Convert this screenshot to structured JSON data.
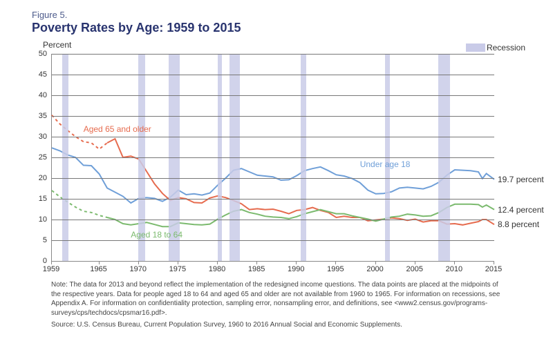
{
  "figure_label": "Figure 5.",
  "title": "Poverty Rates by Age: 1959 to 2015",
  "y_axis_label": "Percent",
  "legend_label": "Recession",
  "chart": {
    "type": "line",
    "xlim": [
      1959,
      2015
    ],
    "ylim": [
      0,
      50
    ],
    "ytick_step": 5,
    "x_ticks": [
      1959,
      1965,
      1970,
      1975,
      1980,
      1985,
      1990,
      1995,
      2000,
      2005,
      2010,
      2015
    ],
    "background_color": "#ffffff",
    "grid_color": "#777777",
    "recession_band_color": "#c9cbe8",
    "recession_bands": [
      [
        1960.3,
        1961.1
      ],
      [
        1969.9,
        1970.8
      ],
      [
        1973.8,
        1975.2
      ],
      [
        1980.0,
        1980.5
      ],
      [
        1981.5,
        1982.8
      ],
      [
        1990.5,
        1991.2
      ],
      [
        2001.2,
        2001.8
      ],
      [
        2007.9,
        2009.4
      ]
    ]
  },
  "series": {
    "under18": {
      "label": "Under age 18",
      "color": "#6f9fd8",
      "label_color": "#6f9fd8",
      "line_width": 2,
      "label_pos": {
        "year": 1998,
        "pct": 24.5
      },
      "end_label": "19.7 percent",
      "end_value": 19.7,
      "data": [
        [
          1959,
          27.3
        ],
        [
          1960,
          26.6
        ],
        [
          1961,
          25.6
        ],
        [
          1962,
          25.0
        ],
        [
          1963,
          23.1
        ],
        [
          1964,
          23.0
        ],
        [
          1965,
          21.0
        ],
        [
          1966,
          17.6
        ],
        [
          1967,
          16.6
        ],
        [
          1968,
          15.6
        ],
        [
          1969,
          14.0
        ],
        [
          1970,
          15.1
        ],
        [
          1971,
          15.3
        ],
        [
          1972,
          15.1
        ],
        [
          1973,
          14.4
        ],
        [
          1974,
          15.4
        ],
        [
          1975,
          17.1
        ],
        [
          1976,
          16.0
        ],
        [
          1977,
          16.2
        ],
        [
          1978,
          15.9
        ],
        [
          1979,
          16.4
        ],
        [
          1980,
          18.3
        ],
        [
          1981,
          20.0
        ],
        [
          1982,
          21.9
        ],
        [
          1983,
          22.3
        ],
        [
          1984,
          21.5
        ],
        [
          1985,
          20.7
        ],
        [
          1986,
          20.5
        ],
        [
          1987,
          20.3
        ],
        [
          1988,
          19.5
        ],
        [
          1989,
          19.6
        ],
        [
          1990,
          20.6
        ],
        [
          1991,
          21.8
        ],
        [
          1992,
          22.3
        ],
        [
          1993,
          22.7
        ],
        [
          1994,
          21.8
        ],
        [
          1995,
          20.8
        ],
        [
          1996,
          20.5
        ],
        [
          1997,
          19.9
        ],
        [
          1998,
          18.9
        ],
        [
          1999,
          17.1
        ],
        [
          2000,
          16.2
        ],
        [
          2001,
          16.3
        ],
        [
          2002,
          16.7
        ],
        [
          2003,
          17.6
        ],
        [
          2004,
          17.8
        ],
        [
          2005,
          17.6
        ],
        [
          2006,
          17.4
        ],
        [
          2007,
          18.0
        ],
        [
          2008,
          19.0
        ],
        [
          2009,
          20.7
        ],
        [
          2010,
          22.0
        ],
        [
          2011,
          21.9
        ],
        [
          2012,
          21.8
        ],
        [
          2013,
          21.5
        ],
        [
          2013.5,
          19.9
        ],
        [
          2014,
          21.1
        ],
        [
          2015,
          19.7
        ]
      ]
    },
    "aged65": {
      "label": "Aged 65 and older",
      "color": "#e66b4e",
      "label_color": "#e66b4e",
      "line_width": 2,
      "label_pos": {
        "year": 1963,
        "pct": 33
      },
      "end_label": "8.8 percent",
      "end_value": 8.8,
      "dashed_before": 1966,
      "data": [
        [
          1959,
          35.2
        ],
        [
          1960,
          33.1
        ],
        [
          1961,
          31.5
        ],
        [
          1962,
          30.0
        ],
        [
          1963,
          28.8
        ],
        [
          1964,
          28.5
        ],
        [
          1965,
          27.0
        ],
        [
          1966,
          28.5
        ],
        [
          1967,
          29.5
        ],
        [
          1968,
          25.0
        ],
        [
          1969,
          25.3
        ],
        [
          1970,
          24.6
        ],
        [
          1971,
          21.6
        ],
        [
          1972,
          18.6
        ],
        [
          1973,
          16.3
        ],
        [
          1974,
          14.6
        ],
        [
          1975,
          15.3
        ],
        [
          1976,
          15.0
        ],
        [
          1977,
          14.1
        ],
        [
          1978,
          14.0
        ],
        [
          1979,
          15.2
        ],
        [
          1980,
          15.7
        ],
        [
          1981,
          15.3
        ],
        [
          1982,
          14.6
        ],
        [
          1983,
          13.8
        ],
        [
          1984,
          12.4
        ],
        [
          1985,
          12.6
        ],
        [
          1986,
          12.4
        ],
        [
          1987,
          12.5
        ],
        [
          1988,
          12.0
        ],
        [
          1989,
          11.4
        ],
        [
          1990,
          12.2
        ],
        [
          1991,
          12.4
        ],
        [
          1992,
          12.9
        ],
        [
          1993,
          12.2
        ],
        [
          1994,
          11.7
        ],
        [
          1995,
          10.5
        ],
        [
          1996,
          10.8
        ],
        [
          1997,
          10.5
        ],
        [
          1998,
          10.5
        ],
        [
          1999,
          9.7
        ],
        [
          2000,
          9.9
        ],
        [
          2001,
          10.1
        ],
        [
          2002,
          10.4
        ],
        [
          2003,
          10.2
        ],
        [
          2004,
          9.8
        ],
        [
          2005,
          10.1
        ],
        [
          2006,
          9.4
        ],
        [
          2007,
          9.7
        ],
        [
          2008,
          9.7
        ],
        [
          2009,
          8.9
        ],
        [
          2010,
          9.0
        ],
        [
          2011,
          8.7
        ],
        [
          2012,
          9.1
        ],
        [
          2013,
          9.5
        ],
        [
          2013.5,
          10.0
        ],
        [
          2014,
          10.0
        ],
        [
          2015,
          8.8
        ]
      ]
    },
    "aged18to64": {
      "label": "Aged 18 to 64",
      "color": "#7bba6e",
      "label_color": "#7bba6e",
      "line_width": 2,
      "label_pos": {
        "year": 1969,
        "pct": 7.5
      },
      "end_label": "12.4 percent",
      "end_value": 12.4,
      "dashed_before": 1966,
      "data": [
        [
          1959,
          17.0
        ],
        [
          1960,
          15.5
        ],
        [
          1961,
          14.2
        ],
        [
          1962,
          13.0
        ],
        [
          1963,
          12.0
        ],
        [
          1964,
          11.7
        ],
        [
          1965,
          11.0
        ],
        [
          1966,
          10.5
        ],
        [
          1967,
          10.0
        ],
        [
          1968,
          9.0
        ],
        [
          1969,
          8.7
        ],
        [
          1970,
          9.0
        ],
        [
          1971,
          9.3
        ],
        [
          1972,
          8.8
        ],
        [
          1973,
          8.3
        ],
        [
          1974,
          8.3
        ],
        [
          1975,
          9.2
        ],
        [
          1976,
          9.0
        ],
        [
          1977,
          8.8
        ],
        [
          1978,
          8.7
        ],
        [
          1979,
          8.9
        ],
        [
          1980,
          10.1
        ],
        [
          1981,
          11.1
        ],
        [
          1982,
          12.0
        ],
        [
          1983,
          12.4
        ],
        [
          1984,
          11.7
        ],
        [
          1985,
          11.3
        ],
        [
          1986,
          10.8
        ],
        [
          1987,
          10.6
        ],
        [
          1988,
          10.5
        ],
        [
          1989,
          10.2
        ],
        [
          1990,
          10.7
        ],
        [
          1991,
          11.4
        ],
        [
          1992,
          11.9
        ],
        [
          1993,
          12.4
        ],
        [
          1994,
          11.9
        ],
        [
          1995,
          11.4
        ],
        [
          1996,
          11.4
        ],
        [
          1997,
          10.9
        ],
        [
          1998,
          10.5
        ],
        [
          1999,
          10.1
        ],
        [
          2000,
          9.6
        ],
        [
          2001,
          10.1
        ],
        [
          2002,
          10.6
        ],
        [
          2003,
          10.8
        ],
        [
          2004,
          11.3
        ],
        [
          2005,
          11.1
        ],
        [
          2006,
          10.8
        ],
        [
          2007,
          10.9
        ],
        [
          2008,
          11.7
        ],
        [
          2009,
          12.9
        ],
        [
          2010,
          13.7
        ],
        [
          2011,
          13.7
        ],
        [
          2012,
          13.7
        ],
        [
          2013,
          13.6
        ],
        [
          2013.5,
          13.0
        ],
        [
          2014,
          13.5
        ],
        [
          2015,
          12.4
        ]
      ]
    }
  },
  "note": "Note: The data for 2013 and beyond reflect the implementation of the redesigned income questions. The data points are placed at the midpoints of the respective years. Data for people aged 18 to 64 and aged 65 and older are not available from 1960 to 1965. For information on recessions, see Appendix A. For information on confidentiality protection, sampling error, nonsampling error, and definitions, see <www2.census.gov/programs-surveys/cps/techdocs/cpsmar16.pdf>.",
  "source": "Source: U.S. Census Bureau, Current Population Survey, 1960 to 2016 Annual Social and Economic Supplements."
}
